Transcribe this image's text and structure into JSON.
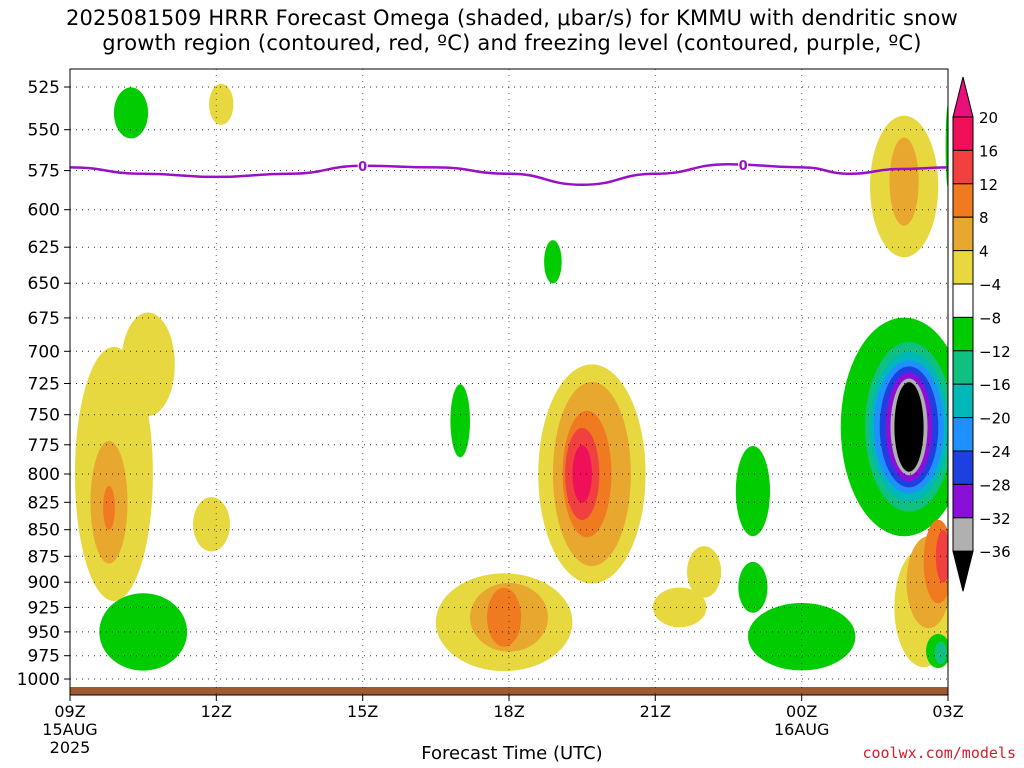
{
  "title_line1": "2025081509 HRRR Forecast Omega (shaded, μbar/s) for KMMU with dendritic snow",
  "title_line2": "growth region (contoured, red, ºC) and freezing level (contoured, purple, ºC)",
  "credit": "coolwx.com/models",
  "chart_data": {
    "type": "heatmap",
    "title": "2025081509 HRRR Forecast Omega (shaded, μbar/s) for KMMU with dendritic snow growth region (contoured, red, ºC) and freezing level (contoured, purple, ºC)",
    "xlabel": "Forecast Time (UTC)",
    "ylabel": "",
    "x_range": [
      "2025-08-15 09Z",
      "2025-08-16 03Z"
    ],
    "y_range_hPa": [
      1000,
      525
    ],
    "y_axis": "pressure (hPa), inverted, log-style spacing",
    "grid": true,
    "y_ticks": [
      525,
      550,
      575,
      600,
      625,
      650,
      675,
      700,
      725,
      750,
      775,
      800,
      825,
      850,
      875,
      900,
      925,
      950,
      975,
      1000
    ],
    "x_ticks": [
      {
        "label": "09Z",
        "sub": [
          "15AUG",
          "2025"
        ],
        "hour": 0
      },
      {
        "label": "12Z",
        "sub": [],
        "hour": 3
      },
      {
        "label": "15Z",
        "sub": [],
        "hour": 6
      },
      {
        "label": "18Z",
        "sub": [],
        "hour": 9
      },
      {
        "label": "21Z",
        "sub": [],
        "hour": 12
      },
      {
        "label": "00Z",
        "sub": [
          "16AUG"
        ],
        "hour": 15
      },
      {
        "label": "03Z",
        "sub": [],
        "hour": 18
      }
    ],
    "colorbar": {
      "levels": [
        20,
        16,
        12,
        8,
        4,
        -4,
        -8,
        -12,
        -16,
        -20,
        -24,
        -28,
        -32,
        -36
      ],
      "colors": [
        "#f0105a",
        "#f04040",
        "#f07a20",
        "#e8a830",
        "#e8d840",
        "#ffffff",
        "#00cc00",
        "#10c080",
        "#00b8b8",
        "#1e90ff",
        "#1e40e0",
        "#8a10d8",
        "#b0b0b0",
        "#000000"
      ],
      "top_color": "#e8107a",
      "bottom_color": "#000000"
    },
    "freezing_level": {
      "label": "0",
      "color": "#9a10c8",
      "points": [
        [
          0,
          573
        ],
        [
          1.5,
          577
        ],
        [
          3,
          579
        ],
        [
          4.5,
          577
        ],
        [
          6,
          572
        ],
        [
          7.5,
          573
        ],
        [
          9,
          577
        ],
        [
          10.5,
          584
        ],
        [
          12,
          577
        ],
        [
          13.5,
          571
        ],
        [
          15,
          573
        ],
        [
          16,
          577
        ],
        [
          17,
          574
        ],
        [
          18,
          573
        ]
      ]
    },
    "omega_regions": [
      {
        "level": -8,
        "hour": 1.25,
        "p": 540,
        "rx": 0.35,
        "rp": 15
      },
      {
        "level": 4,
        "hour": 3.1,
        "p": 535,
        "rx": 0.25,
        "rp": 12
      },
      {
        "level": 4,
        "hour": 0.9,
        "p": 800,
        "rx": 0.8,
        "rp": 110
      },
      {
        "level": 8,
        "hour": 0.8,
        "p": 825,
        "rx": 0.38,
        "rp": 55
      },
      {
        "level": 12,
        "hour": 0.8,
        "p": 830,
        "rx": 0.12,
        "rp": 20
      },
      {
        "level": 4,
        "hour": 1.6,
        "p": 710,
        "rx": 0.55,
        "rp": 40
      },
      {
        "level": 4,
        "hour": 2.9,
        "p": 845,
        "rx": 0.38,
        "rp": 25
      },
      {
        "level": -8,
        "hour": 1.5,
        "p": 950,
        "rx": 0.9,
        "rp": 40
      },
      {
        "level": -8,
        "hour": 9.9,
        "p": 635,
        "rx": 0.18,
        "rp": 15
      },
      {
        "level": 4,
        "hour": 8.9,
        "p": 940,
        "rx": 1.4,
        "rp": 50
      },
      {
        "level": 8,
        "hour": 9.0,
        "p": 935,
        "rx": 0.8,
        "rp": 35
      },
      {
        "level": 12,
        "hour": 8.9,
        "p": 935,
        "rx": 0.35,
        "rp": 30
      },
      {
        "level": 4,
        "hour": 10.7,
        "p": 800,
        "rx": 1.1,
        "rp": 95
      },
      {
        "level": 8,
        "hour": 10.7,
        "p": 800,
        "rx": 0.8,
        "rp": 80
      },
      {
        "level": 12,
        "hour": 10.6,
        "p": 800,
        "rx": 0.5,
        "rp": 55
      },
      {
        "level": 16,
        "hour": 10.5,
        "p": 800,
        "rx": 0.35,
        "rp": 40
      },
      {
        "level": 20,
        "hour": 10.5,
        "p": 800,
        "rx": 0.2,
        "rp": 25
      },
      {
        "level": -8,
        "hour": 8.0,
        "p": 755,
        "rx": 0.2,
        "rp": 30
      },
      {
        "level": 4,
        "hour": 12.5,
        "p": 925,
        "rx": 0.55,
        "rp": 20
      },
      {
        "level": 4,
        "hour": 13.0,
        "p": 890,
        "rx": 0.35,
        "rp": 25
      },
      {
        "level": -8,
        "hour": 14.0,
        "p": 815,
        "rx": 0.35,
        "rp": 40
      },
      {
        "level": -8,
        "hour": 14.0,
        "p": 905,
        "rx": 0.3,
        "rp": 25
      },
      {
        "level": -8,
        "hour": 15.0,
        "p": 955,
        "rx": 1.1,
        "rp": 35
      },
      {
        "level": 4,
        "hour": 17.1,
        "p": 585,
        "rx": 0.7,
        "rp": 45
      },
      {
        "level": 8,
        "hour": 17.1,
        "p": 582,
        "rx": 0.3,
        "rp": 28
      },
      {
        "level": -8,
        "hour": 17.1,
        "p": 760,
        "rx": 1.3,
        "rp": 90
      },
      {
        "level": -12,
        "hour": 17.2,
        "p": 760,
        "rx": 0.9,
        "rp": 70
      },
      {
        "level": -16,
        "hour": 17.2,
        "p": 760,
        "rx": 0.8,
        "rp": 62
      },
      {
        "level": -20,
        "hour": 17.2,
        "p": 760,
        "rx": 0.72,
        "rp": 55
      },
      {
        "level": -24,
        "hour": 17.2,
        "p": 760,
        "rx": 0.6,
        "rp": 50
      },
      {
        "level": -28,
        "hour": 17.2,
        "p": 760,
        "rx": 0.48,
        "rp": 45
      },
      {
        "level": -32,
        "hour": 17.2,
        "p": 760,
        "rx": 0.38,
        "rp": 40
      },
      {
        "level": -36,
        "hour": 17.2,
        "p": 760,
        "rx": 0.3,
        "rp": 37
      },
      {
        "level": 4,
        "hour": 17.5,
        "p": 925,
        "rx": 0.6,
        "rp": 60
      },
      {
        "level": 8,
        "hour": 17.6,
        "p": 900,
        "rx": 0.45,
        "rp": 45
      },
      {
        "level": 12,
        "hour": 17.8,
        "p": 880,
        "rx": 0.3,
        "rp": 40
      },
      {
        "level": 16,
        "hour": 17.9,
        "p": 875,
        "rx": 0.15,
        "rp": 25
      },
      {
        "level": -8,
        "hour": 17.8,
        "p": 970,
        "rx": 0.25,
        "rp": 18
      },
      {
        "level": -12,
        "hour": 17.85,
        "p": 972,
        "rx": 0.13,
        "rp": 12
      },
      {
        "level": -8,
        "hour": 18.0,
        "p": 560,
        "rx": 0.05,
        "rp": 25
      }
    ],
    "terrain_color": "#a05a32"
  }
}
